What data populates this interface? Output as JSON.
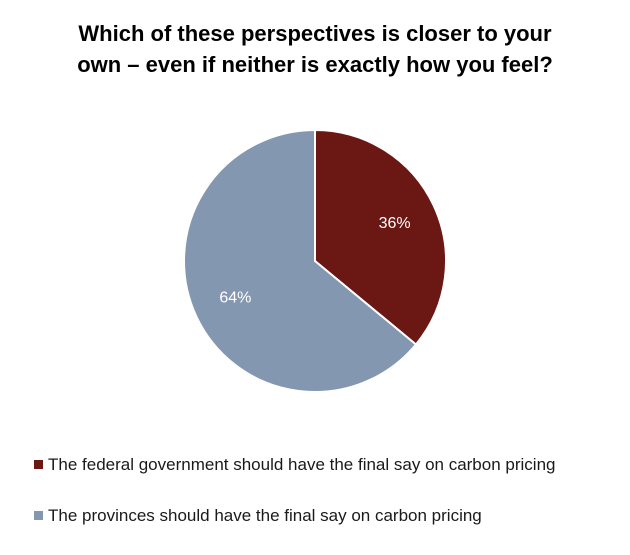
{
  "chart_data": {
    "type": "pie",
    "title": "Which of these perspectives is closer to your own – even if neither is exactly how you feel?",
    "title_lines": [
      "Which of these perspectives is closer to your",
      "own – even if neither is exactly how you feel?"
    ],
    "slices": [
      {
        "label": "The federal government should have the final say on carbon pricing",
        "value": 36,
        "value_label": "36%",
        "color": "#6b1714"
      },
      {
        "label": "The provinces should have the final say on carbon pricing",
        "value": 64,
        "value_label": "64%",
        "color": "#8497b0"
      }
    ],
    "legend_position": "bottom-left",
    "start_angle": "12 o'clock, clockwise"
  }
}
